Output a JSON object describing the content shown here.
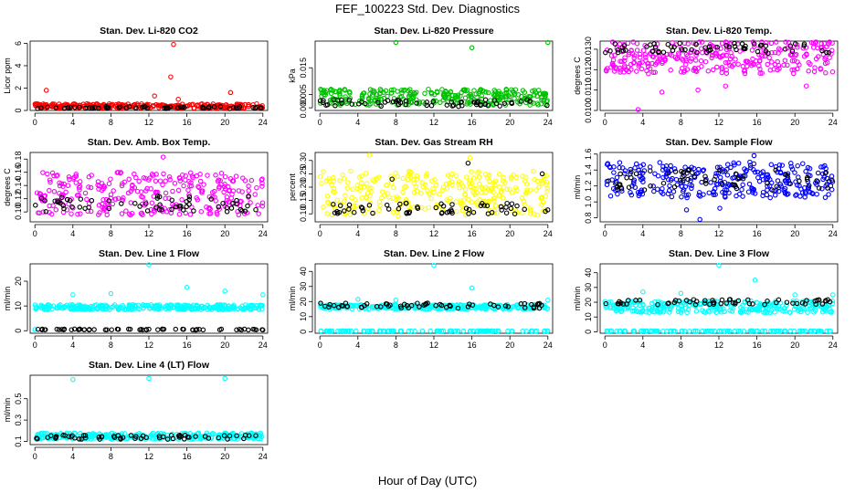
{
  "figure": {
    "title": "FEF_100223  Std. Dev. Diagnostics",
    "xlabel": "Hour of Day (UTC)"
  },
  "chart_data": [
    {
      "type": "scatter",
      "title": "Stan. Dev. Li-820 CO2",
      "ylabel": "Licor ppm",
      "xlim": [
        -0.5,
        24.5
      ],
      "ylim": [
        0,
        6.2
      ],
      "xticks": [
        0,
        4,
        8,
        12,
        16,
        20,
        24
      ],
      "yticks": [
        0,
        2,
        4,
        6
      ],
      "ytick_labels": [
        "0",
        "2",
        "4",
        "6"
      ],
      "series": [
        {
          "color": "#ff0000",
          "points_shown": 300,
          "typical_range": [
            0.2,
            0.6
          ],
          "outliers": [
            [
              1.2,
              1.8
            ],
            [
              12.6,
              1.3
            ],
            [
              14.3,
              3.0
            ],
            [
              14.6,
              5.9
            ],
            [
              20.6,
              1.6
            ],
            [
              15.1,
              1.0
            ]
          ]
        },
        {
          "color": "#000000",
          "points_shown": 60,
          "typical_range": [
            0.15,
            0.35
          ]
        }
      ]
    },
    {
      "type": "scatter",
      "title": "Stan. Dev. Li-820 Pressure",
      "ylabel": "kPa",
      "xlim": [
        -0.5,
        24.5
      ],
      "ylim": [
        -0.001,
        0.025
      ],
      "xticks": [
        0,
        4,
        8,
        12,
        16,
        20,
        24
      ],
      "yticks": [
        0.0,
        0.005,
        0.015
      ],
      "ytick_labels": [
        "0.000",
        "0.005",
        "0.015"
      ],
      "series": [
        {
          "color": "#00c000",
          "points_shown": 300,
          "typical_range": [
            0.001,
            0.007
          ],
          "outliers": [
            [
              8.0,
              0.0245
            ],
            [
              16.0,
              0.0225
            ],
            [
              24.0,
              0.0245
            ]
          ]
        },
        {
          "color": "#000000",
          "points_shown": 60,
          "typical_range": [
            0.0005,
            0.003
          ]
        }
      ]
    },
    {
      "type": "scatter",
      "title": "Stan. Dev. Li-820 Temp.",
      "ylabel": "degrees C",
      "xlim": [
        -0.5,
        24.5
      ],
      "ylim": [
        0.01,
        0.0134
      ],
      "xticks": [
        0,
        4,
        8,
        12,
        16,
        20,
        24
      ],
      "yticks": [
        0.01,
        0.011,
        0.012,
        0.013
      ],
      "ytick_labels": [
        "0.0100",
        "0.0110",
        "0.0120",
        "0.0130"
      ],
      "series": [
        {
          "color": "#ff00ff",
          "points_shown": 300,
          "typical_range": [
            0.0118,
            0.0134
          ],
          "outliers": [
            [
              3.5,
              0.01
            ],
            [
              6.0,
              0.0109
            ],
            [
              9.8,
              0.011
            ],
            [
              12.7,
              0.0112
            ],
            [
              21.2,
              0.0112
            ]
          ]
        },
        {
          "color": "#000000",
          "points_shown": 60,
          "typical_range": [
            0.0128,
            0.0133
          ]
        }
      ]
    },
    {
      "type": "scatter",
      "title": "Stan. Dev. Amb. Box Temp.",
      "ylabel": "degrees C",
      "xlim": [
        -0.5,
        24.5
      ],
      "ylim": [
        0.085,
        0.19
      ],
      "xticks": [
        0,
        4,
        8,
        12,
        16,
        20,
        24
      ],
      "yticks": [
        0.1,
        0.12,
        0.14,
        0.16,
        0.18
      ],
      "ytick_labels": [
        "0.10",
        "0.12",
        "0.14",
        "0.16",
        "0.18"
      ],
      "series": [
        {
          "color": "#ff00ff",
          "points_shown": 300,
          "typical_range": [
            0.095,
            0.16
          ],
          "outliers": [
            [
              13.5,
              0.183
            ]
          ]
        },
        {
          "color": "#000000",
          "points_shown": 60,
          "typical_range": [
            0.1,
            0.125
          ]
        }
      ]
    },
    {
      "type": "scatter",
      "title": "Stan. Dev. Gas Stream RH",
      "ylabel": "percent",
      "xlim": [
        -0.5,
        24.5
      ],
      "ylim": [
        0.07,
        0.33
      ],
      "xticks": [
        0,
        4,
        8,
        12,
        16,
        20,
        24
      ],
      "yticks": [
        0.1,
        0.15,
        0.2,
        0.25,
        0.3
      ],
      "ytick_labels": [
        "0.10",
        "0.15",
        "0.20",
        "0.25",
        "0.30"
      ],
      "series": [
        {
          "color": "#ffff00",
          "points_shown": 300,
          "typical_range": [
            0.09,
            0.26
          ],
          "outliers": [
            [
              5.2,
              0.32
            ],
            [
              15.8,
              0.31
            ]
          ]
        },
        {
          "color": "#000000",
          "points_shown": 60,
          "typical_range": [
            0.1,
            0.14
          ],
          "outliers": [
            [
              15.6,
              0.29
            ],
            [
              23.4,
              0.25
            ],
            [
              7.6,
              0.23
            ]
          ]
        }
      ]
    },
    {
      "type": "scatter",
      "title": "Stan. Dev. Sample Flow",
      "ylabel": "ml/min",
      "xlim": [
        -0.5,
        24.5
      ],
      "ylim": [
        0.75,
        1.62
      ],
      "xticks": [
        0,
        4,
        8,
        12,
        16,
        20,
        24
      ],
      "yticks": [
        0.8,
        1.0,
        1.2,
        1.4,
        1.6
      ],
      "ytick_labels": [
        "0.8",
        "1.0",
        "1.2",
        "1.4",
        "1.6"
      ],
      "series": [
        {
          "color": "#0000ff",
          "points_shown": 300,
          "typical_range": [
            1.05,
            1.5
          ],
          "outliers": [
            [
              10.0,
              0.78
            ],
            [
              8.6,
              0.9
            ],
            [
              12.1,
              0.92
            ],
            [
              15.7,
              1.58
            ]
          ]
        },
        {
          "color": "#000000",
          "points_shown": 60,
          "typical_range": [
            1.15,
            1.4
          ]
        }
      ]
    },
    {
      "type": "scatter",
      "title": "Stan. Dev. Line 1 Flow",
      "ylabel": "ml/min",
      "xlim": [
        -0.5,
        24.5
      ],
      "ylim": [
        -1,
        27
      ],
      "xticks": [
        0,
        4,
        8,
        12,
        16,
        20,
        24
      ],
      "yticks": [
        0,
        10,
        20
      ],
      "ytick_labels": [
        "0",
        "10",
        "20"
      ],
      "series": [
        {
          "color": "#00ffff",
          "points_shown": 300,
          "typical_range": [
            8.5,
            10.5
          ],
          "outliers": [
            [
              4.0,
              14.5
            ],
            [
              8.0,
              15.0
            ],
            [
              12.0,
              27.0
            ],
            [
              16.0,
              17.5
            ],
            [
              20.0,
              16.0
            ],
            [
              24.0,
              14.5
            ],
            [
              0.0,
              0.5
            ]
          ]
        },
        {
          "color": "#000000",
          "points_shown": 60,
          "typical_range": [
            0.3,
            0.7
          ]
        }
      ]
    },
    {
      "type": "scatter",
      "title": "Stan. Dev. Line 2 Flow",
      "ylabel": "ml/min",
      "xlim": [
        -0.5,
        24.5
      ],
      "ylim": [
        -1,
        45
      ],
      "xticks": [
        0,
        4,
        8,
        12,
        16,
        20,
        24
      ],
      "yticks": [
        0,
        10,
        20,
        30,
        40
      ],
      "ytick_labels": [
        "0",
        "10",
        "20",
        "30",
        "40"
      ],
      "series": [
        {
          "color": "#00ffff",
          "points_shown": 300,
          "typical_range": [
            15,
            18
          ],
          "outliers": [
            [
              12.0,
              44.0
            ],
            [
              16.0,
              29.0
            ],
            [
              4.0,
              21.5
            ],
            [
              8.0,
              21.0
            ],
            [
              24.0,
              21.0
            ]
          ]
        },
        {
          "color": "#000000",
          "points_shown": 60,
          "typical_range": [
            15.5,
            19.0
          ]
        },
        {
          "color": "#00ffff",
          "points_shown": 100,
          "typical_range": [
            0.4,
            0.6
          ]
        }
      ]
    },
    {
      "type": "scatter",
      "title": "Stan. Dev. Line 3 Flow",
      "ylabel": "ml/min",
      "xlim": [
        -0.5,
        24.5
      ],
      "ylim": [
        -1,
        46
      ],
      "xticks": [
        0,
        4,
        8,
        12,
        16,
        20,
        24
      ],
      "yticks": [
        0,
        10,
        20,
        30,
        40
      ],
      "ytick_labels": [
        "0",
        "10",
        "20",
        "30",
        "40"
      ],
      "series": [
        {
          "color": "#00ffff",
          "points_shown": 300,
          "typical_range": [
            13,
            21
          ],
          "outliers": [
            [
              12.0,
              45.0
            ],
            [
              15.8,
              35.0
            ],
            [
              4.0,
              27.0
            ],
            [
              8.0,
              26.0
            ],
            [
              20.0,
              25.0
            ],
            [
              24.0,
              25.0
            ]
          ]
        },
        {
          "color": "#000000",
          "points_shown": 60,
          "typical_range": [
            18,
            22
          ]
        },
        {
          "color": "#00ffff",
          "points_shown": 100,
          "typical_range": [
            0.4,
            0.6
          ]
        }
      ]
    },
    {
      "type": "scatter",
      "title": "Stan. Dev. Line 4 (LT) Flow",
      "ylabel": "ml/min",
      "xlim": [
        -0.5,
        24.5
      ],
      "ylim": [
        0.07,
        0.72
      ],
      "xticks": [
        0,
        4,
        8,
        12,
        16,
        20,
        24
      ],
      "yticks": [
        0.1,
        0.3,
        0.5
      ],
      "ytick_labels": [
        "0.1",
        "0.3",
        "0.5"
      ],
      "series": [
        {
          "color": "#00ffff",
          "points_shown": 300,
          "typical_range": [
            0.12,
            0.18
          ],
          "outliers": [
            [
              4.0,
              0.68
            ],
            [
              12.0,
              0.69
            ],
            [
              20.0,
              0.69
            ]
          ]
        },
        {
          "color": "#000000",
          "points_shown": 60,
          "typical_range": [
            0.12,
            0.16
          ]
        }
      ]
    }
  ]
}
